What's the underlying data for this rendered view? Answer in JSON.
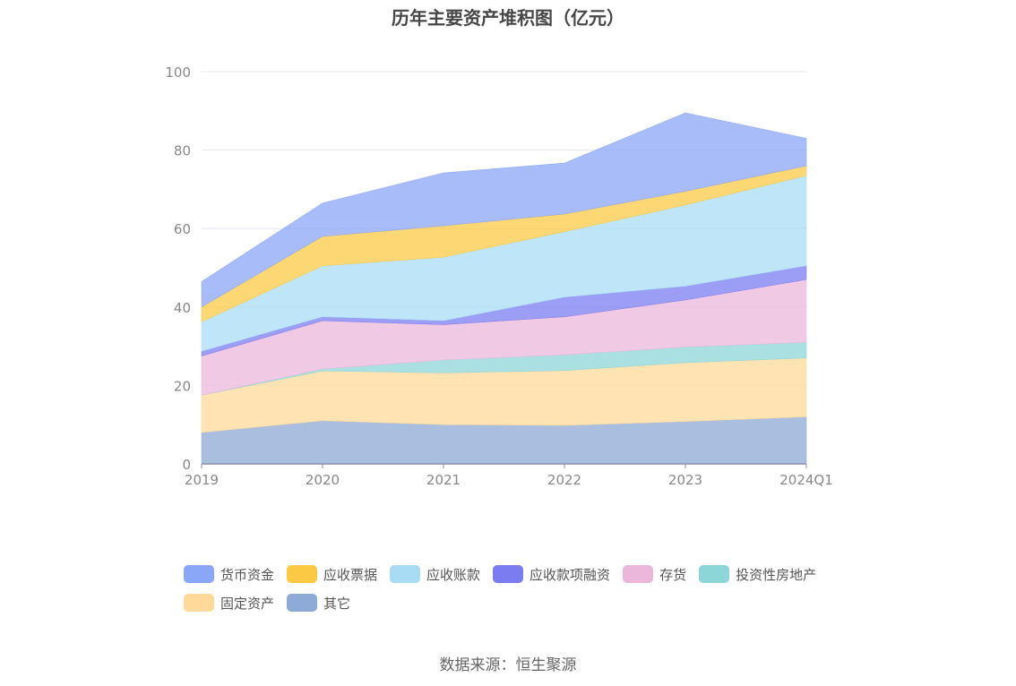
{
  "chart_data": {
    "type": "area",
    "stacked": true,
    "title": "历年主要资产堆积图（亿元）",
    "categories": [
      "2019",
      "2020",
      "2021",
      "2022",
      "2023",
      "2024Q1"
    ],
    "ylim": [
      0,
      100
    ],
    "yticks": [
      0,
      20,
      40,
      60,
      80,
      100
    ],
    "grid": true,
    "legend_position": "bottom",
    "series": [
      {
        "name": "其它",
        "color": "#8eaad6",
        "values": [
          8.0,
          11.0,
          10.0,
          9.8,
          10.8,
          12.0
        ]
      },
      {
        "name": "固定资产",
        "color": "#ffd99a",
        "values": [
          9.5,
          12.7,
          13.2,
          14.0,
          15.0,
          15.0
        ]
      },
      {
        "name": "投资性房地产",
        "color": "#8dd6d8",
        "values": [
          0.0,
          0.5,
          3.3,
          4.0,
          4.0,
          4.0
        ]
      },
      {
        "name": "存货",
        "color": "#ebb8dc",
        "values": [
          10.0,
          12.3,
          9.0,
          9.7,
          12.0,
          16.0
        ]
      },
      {
        "name": "应收款项融资",
        "color": "#7b7cf0",
        "values": [
          1.2,
          1.0,
          1.0,
          5.0,
          3.5,
          3.5
        ]
      },
      {
        "name": "应收账款",
        "color": "#a8dcf5",
        "values": [
          7.5,
          13.0,
          16.2,
          16.7,
          20.7,
          23.0
        ]
      },
      {
        "name": "应收票据",
        "color": "#fcc945",
        "values": [
          3.8,
          7.5,
          8.0,
          4.5,
          3.5,
          2.5
        ]
      },
      {
        "name": "货币资金",
        "color": "#89a6f7",
        "values": [
          6.5,
          8.5,
          13.5,
          13.0,
          20.0,
          7.0
        ]
      }
    ],
    "source": "数据来源：恒生聚源"
  },
  "legend_order": [
    "货币资金",
    "应收票据",
    "应收账款",
    "应收款项融资",
    "存货",
    "投资性房地产",
    "固定资产",
    "其它"
  ]
}
